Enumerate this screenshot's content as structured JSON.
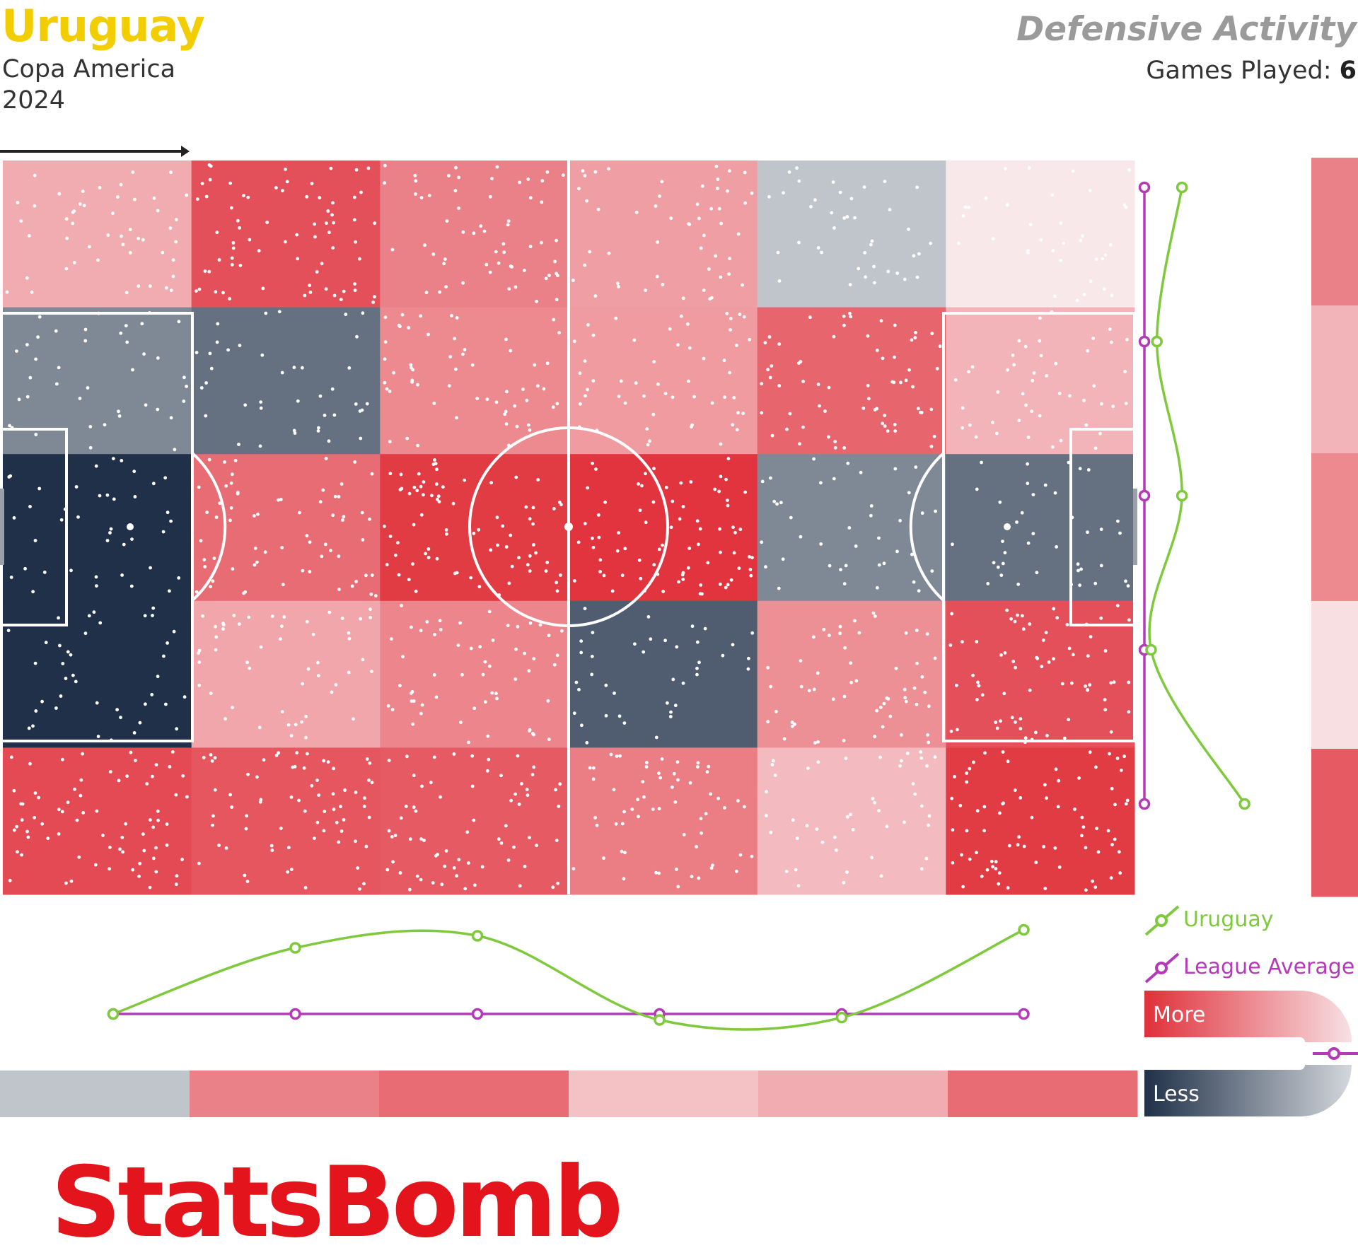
{
  "header": {
    "team": "Uruguay",
    "competition": "Copa America",
    "season": "2024",
    "title": "Defensive Activity",
    "games_label": "Games Played: ",
    "games_value": "6"
  },
  "legend": {
    "team_label": "Uruguay",
    "average_label": "League Average",
    "more_label": "More",
    "less_label": "Less"
  },
  "brand": {
    "logo_text": "StatsBomb"
  },
  "colors": {
    "team_line": "#7fc93d",
    "average_line": "#b43ab8",
    "title": "#f2cd00",
    "more": "#e0303a",
    "less": "#1f3048",
    "neutral": "#ced1d6",
    "logo": "#e3141c"
  },
  "chart_data": {
    "type": "heatmap",
    "title": "Defensive Activity",
    "rows": 5,
    "cols": 6,
    "attack_direction": "left-to-right",
    "cell_values": [
      [
        0.42,
        0.85,
        0.62,
        0.48,
        -0.08,
        0.14
      ],
      [
        -0.45,
        -0.6,
        0.58,
        0.5,
        0.75,
        0.38
      ],
      [
        -1.0,
        0.72,
        0.95,
        0.98,
        -0.45,
        -0.6
      ],
      [
        -1.0,
        0.45,
        0.6,
        -0.72,
        0.55,
        0.85
      ],
      [
        0.88,
        0.82,
        0.8,
        0.64,
        0.35,
        0.95
      ]
    ],
    "column_totals": {
      "uruguay": [
        0.0,
        0.55,
        0.65,
        -0.05,
        -0.03,
        0.7
      ],
      "league_average": [
        0,
        0,
        0,
        0,
        0,
        0
      ],
      "strip": [
        -0.08,
        0.62,
        0.72,
        0.32,
        0.42,
        0.72
      ]
    },
    "row_totals": {
      "uruguay": [
        0.45,
        0.15,
        0.45,
        0.08,
        1.2
      ],
      "league_average": [
        0,
        0,
        0,
        0,
        0
      ],
      "strip": [
        0.62,
        0.38,
        0.58,
        0.18,
        0.8
      ]
    },
    "color_scale": {
      "more": "#e0303a",
      "neutral": "#ced1d6",
      "less": "#1f3048"
    }
  }
}
